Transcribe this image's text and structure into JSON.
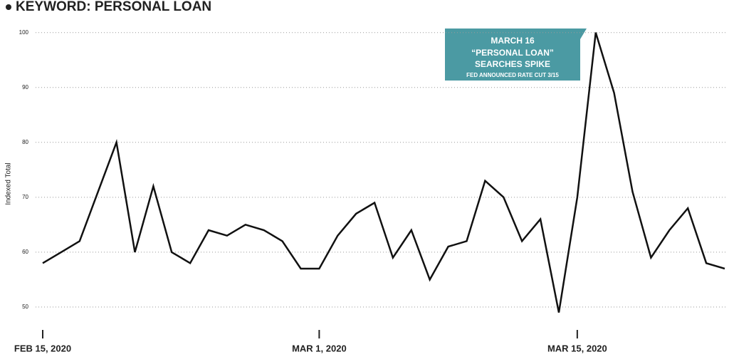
{
  "chart_data": {
    "type": "line",
    "title": "KEYWORD: PERSONAL LOAN",
    "y_label": "Indexed Total",
    "x": [
      "2020-02-15",
      "2020-02-16",
      "2020-02-17",
      "2020-02-18",
      "2020-02-19",
      "2020-02-20",
      "2020-02-21",
      "2020-02-22",
      "2020-02-23",
      "2020-02-24",
      "2020-02-25",
      "2020-02-26",
      "2020-02-27",
      "2020-02-28",
      "2020-02-29",
      "2020-03-01",
      "2020-03-02",
      "2020-03-03",
      "2020-03-04",
      "2020-03-05",
      "2020-03-06",
      "2020-03-07",
      "2020-03-08",
      "2020-03-09",
      "2020-03-10",
      "2020-03-11",
      "2020-03-12",
      "2020-03-13",
      "2020-03-14",
      "2020-03-15",
      "2020-03-16",
      "2020-03-17",
      "2020-03-18",
      "2020-03-19",
      "2020-03-20",
      "2020-03-21",
      "2020-03-22",
      "2020-03-23"
    ],
    "values": [
      58,
      60,
      62,
      71,
      80,
      60,
      72,
      60,
      58,
      64,
      63,
      65,
      64,
      62,
      57,
      57,
      63,
      67,
      69,
      59,
      64,
      55,
      61,
      62,
      73,
      70,
      62,
      66,
      49,
      70,
      100,
      89,
      71,
      59,
      64,
      68,
      58,
      57
    ],
    "color": "#111111",
    "xlim": [
      "2020-02-15",
      "2020-03-23"
    ],
    "xticks": [
      {
        "value": "2020-02-15",
        "label": "FEB 15, 2020"
      },
      {
        "value": "2020-03-01",
        "label": "MAR 1, 2020"
      },
      {
        "value": "2020-03-15",
        "label": "MAR 15, 2020"
      }
    ],
    "ylim": [
      47,
      101
    ],
    "yticks": [
      50,
      60,
      70,
      80,
      90,
      100
    ],
    "grid": true,
    "annotation": [
      "MARCH 16",
      "“PERSONAL LOAN”",
      "SEARCHES SPIKE",
      "FED ANNOUNCED RATE CUT 3/15"
    ]
  }
}
